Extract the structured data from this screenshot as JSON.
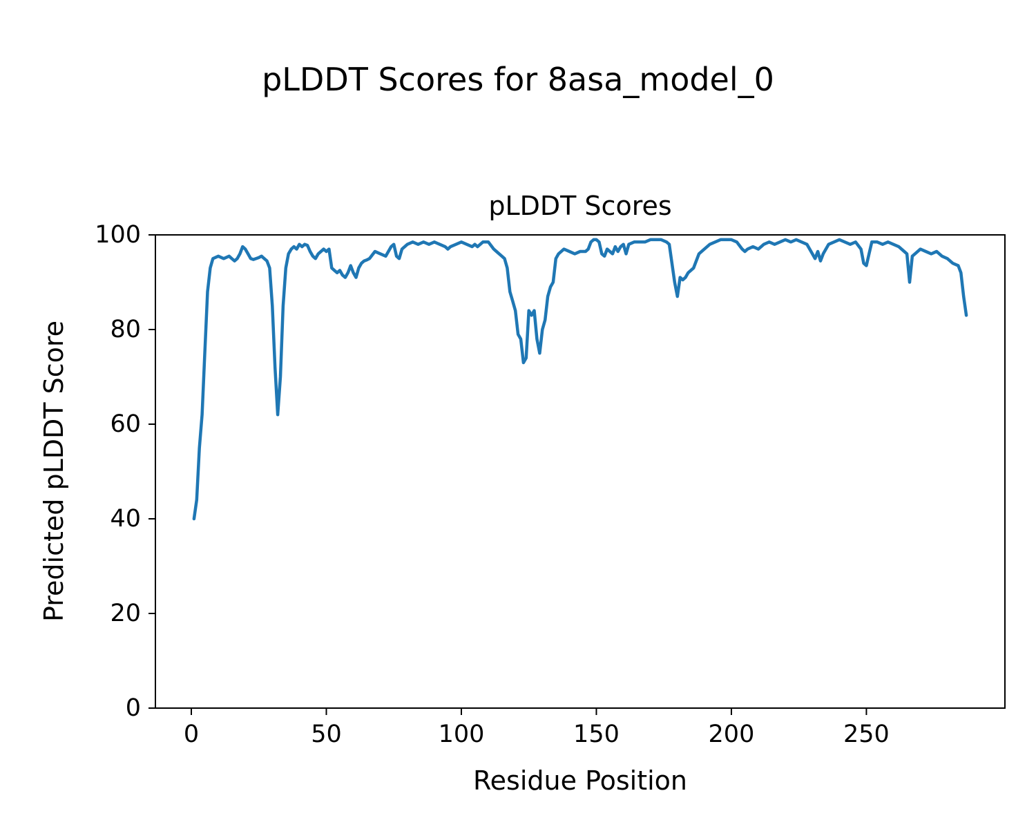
{
  "figure": {
    "suptitle": "pLDDT Scores for 8asa_model_0",
    "axes_title": "pLDDT Scores",
    "xlabel": "Residue Position",
    "ylabel": "Predicted pLDDT Score"
  },
  "chart_data": {
    "type": "line",
    "title": "pLDDT Scores",
    "suptitle": "pLDDT Scores for 8asa_model_0",
    "xlabel": "Residue Position",
    "ylabel": "Predicted pLDDT Score",
    "xlim": [
      -13.3,
      301.3
    ],
    "ylim": [
      0,
      100
    ],
    "xticks": [
      0,
      50,
      100,
      150,
      200,
      250
    ],
    "yticks": [
      0,
      20,
      40,
      60,
      80,
      100
    ],
    "grid": false,
    "legend": null,
    "line_color": "#1f77b4",
    "line_width": 4.5,
    "series": [
      {
        "name": "pLDDT",
        "points": [
          [
            1,
            40
          ],
          [
            2,
            44
          ],
          [
            3,
            55
          ],
          [
            4,
            62
          ],
          [
            5,
            75
          ],
          [
            6,
            88
          ],
          [
            7,
            93
          ],
          [
            8,
            95
          ],
          [
            10,
            95.5
          ],
          [
            12,
            95
          ],
          [
            14,
            95.5
          ],
          [
            15,
            95
          ],
          [
            16,
            94.5
          ],
          [
            17,
            95
          ],
          [
            18,
            96
          ],
          [
            19,
            97.5
          ],
          [
            20,
            97
          ],
          [
            21,
            96
          ],
          [
            22,
            95
          ],
          [
            23,
            94.8
          ],
          [
            24,
            95
          ],
          [
            25,
            95.2
          ],
          [
            26,
            95.5
          ],
          [
            27,
            95
          ],
          [
            28,
            94.5
          ],
          [
            29,
            93
          ],
          [
            30,
            85
          ],
          [
            31,
            72
          ],
          [
            32,
            62
          ],
          [
            33,
            70
          ],
          [
            34,
            85
          ],
          [
            35,
            93
          ],
          [
            36,
            96
          ],
          [
            37,
            97
          ],
          [
            38,
            97.5
          ],
          [
            39,
            97
          ],
          [
            40,
            98
          ],
          [
            41,
            97.5
          ],
          [
            42,
            98
          ],
          [
            43,
            97.8
          ],
          [
            44,
            96.5
          ],
          [
            45,
            95.5
          ],
          [
            46,
            95
          ],
          [
            47,
            96
          ],
          [
            48,
            96.5
          ],
          [
            49,
            97
          ],
          [
            50,
            96.5
          ],
          [
            51,
            97
          ],
          [
            52,
            93
          ],
          [
            53,
            92.5
          ],
          [
            54,
            92
          ],
          [
            55,
            92.5
          ],
          [
            56,
            91.5
          ],
          [
            57,
            91
          ],
          [
            58,
            92
          ],
          [
            59,
            93.5
          ],
          [
            60,
            92
          ],
          [
            61,
            91
          ],
          [
            62,
            93
          ],
          [
            63,
            94
          ],
          [
            64,
            94.5
          ],
          [
            65,
            94.7
          ],
          [
            66,
            95
          ],
          [
            68,
            96.5
          ],
          [
            70,
            96
          ],
          [
            72,
            95.5
          ],
          [
            74,
            97.5
          ],
          [
            75,
            98
          ],
          [
            76,
            95.5
          ],
          [
            77,
            95
          ],
          [
            78,
            97
          ],
          [
            80,
            98
          ],
          [
            82,
            98.5
          ],
          [
            84,
            98
          ],
          [
            86,
            98.5
          ],
          [
            88,
            98
          ],
          [
            90,
            98.5
          ],
          [
            92,
            98
          ],
          [
            94,
            97.5
          ],
          [
            95,
            97
          ],
          [
            96,
            97.5
          ],
          [
            98,
            98
          ],
          [
            100,
            98.5
          ],
          [
            102,
            98
          ],
          [
            104,
            97.5
          ],
          [
            105,
            98
          ],
          [
            106,
            97.5
          ],
          [
            107,
            98
          ],
          [
            108,
            98.5
          ],
          [
            110,
            98.5
          ],
          [
            112,
            97
          ],
          [
            113,
            96.5
          ],
          [
            114,
            96
          ],
          [
            115,
            95.5
          ],
          [
            116,
            95
          ],
          [
            117,
            93
          ],
          [
            118,
            88
          ],
          [
            119,
            86
          ],
          [
            120,
            84
          ],
          [
            121,
            79
          ],
          [
            122,
            78
          ],
          [
            123,
            73
          ],
          [
            124,
            74
          ],
          [
            125,
            84
          ],
          [
            126,
            83
          ],
          [
            127,
            84
          ],
          [
            128,
            78
          ],
          [
            129,
            75
          ],
          [
            130,
            80
          ],
          [
            131,
            82
          ],
          [
            132,
            87
          ],
          [
            133,
            89
          ],
          [
            134,
            90
          ],
          [
            135,
            95
          ],
          [
            136,
            96
          ],
          [
            138,
            97
          ],
          [
            140,
            96.5
          ],
          [
            142,
            96
          ],
          [
            144,
            96.5
          ],
          [
            146,
            96.5
          ],
          [
            147,
            97
          ],
          [
            148,
            98.5
          ],
          [
            149,
            99
          ],
          [
            150,
            99
          ],
          [
            151,
            98.5
          ],
          [
            152,
            96
          ],
          [
            153,
            95.5
          ],
          [
            154,
            97
          ],
          [
            155,
            96.5
          ],
          [
            156,
            96
          ],
          [
            157,
            97.5
          ],
          [
            158,
            96.5
          ],
          [
            159,
            97.5
          ],
          [
            160,
            98
          ],
          [
            161,
            96
          ],
          [
            162,
            98
          ],
          [
            164,
            98.5
          ],
          [
            166,
            98.5
          ],
          [
            168,
            98.5
          ],
          [
            170,
            99
          ],
          [
            172,
            99
          ],
          [
            174,
            99
          ],
          [
            176,
            98.5
          ],
          [
            177,
            98
          ],
          [
            178,
            94
          ],
          [
            179,
            90
          ],
          [
            180,
            87
          ],
          [
            181,
            91
          ],
          [
            182,
            90.5
          ],
          [
            183,
            91
          ],
          [
            184,
            92
          ],
          [
            186,
            93
          ],
          [
            188,
            96
          ],
          [
            190,
            97
          ],
          [
            192,
            98
          ],
          [
            194,
            98.5
          ],
          [
            196,
            99
          ],
          [
            198,
            99
          ],
          [
            200,
            99
          ],
          [
            202,
            98.5
          ],
          [
            204,
            97
          ],
          [
            205,
            96.5
          ],
          [
            206,
            97
          ],
          [
            208,
            97.5
          ],
          [
            210,
            97
          ],
          [
            212,
            98
          ],
          [
            214,
            98.5
          ],
          [
            216,
            98
          ],
          [
            218,
            98.5
          ],
          [
            220,
            99
          ],
          [
            222,
            98.5
          ],
          [
            224,
            99
          ],
          [
            226,
            98.5
          ],
          [
            228,
            98
          ],
          [
            230,
            96
          ],
          [
            231,
            95
          ],
          [
            232,
            96.5
          ],
          [
            233,
            94.5
          ],
          [
            234,
            96
          ],
          [
            236,
            98
          ],
          [
            238,
            98.5
          ],
          [
            240,
            99
          ],
          [
            242,
            98.5
          ],
          [
            244,
            98
          ],
          [
            246,
            98.5
          ],
          [
            248,
            97
          ],
          [
            249,
            94
          ],
          [
            250,
            93.5
          ],
          [
            251,
            96
          ],
          [
            252,
            98.5
          ],
          [
            254,
            98.5
          ],
          [
            256,
            98
          ],
          [
            258,
            98.5
          ],
          [
            260,
            98
          ],
          [
            262,
            97.5
          ],
          [
            264,
            96.5
          ],
          [
            265,
            96
          ],
          [
            266,
            90
          ],
          [
            267,
            95.5
          ],
          [
            268,
            96
          ],
          [
            270,
            97
          ],
          [
            272,
            96.5
          ],
          [
            274,
            96
          ],
          [
            276,
            96.5
          ],
          [
            278,
            95.5
          ],
          [
            280,
            95
          ],
          [
            282,
            94
          ],
          [
            284,
            93.5
          ],
          [
            285,
            92
          ],
          [
            286,
            87
          ],
          [
            287,
            83
          ]
        ]
      }
    ]
  }
}
